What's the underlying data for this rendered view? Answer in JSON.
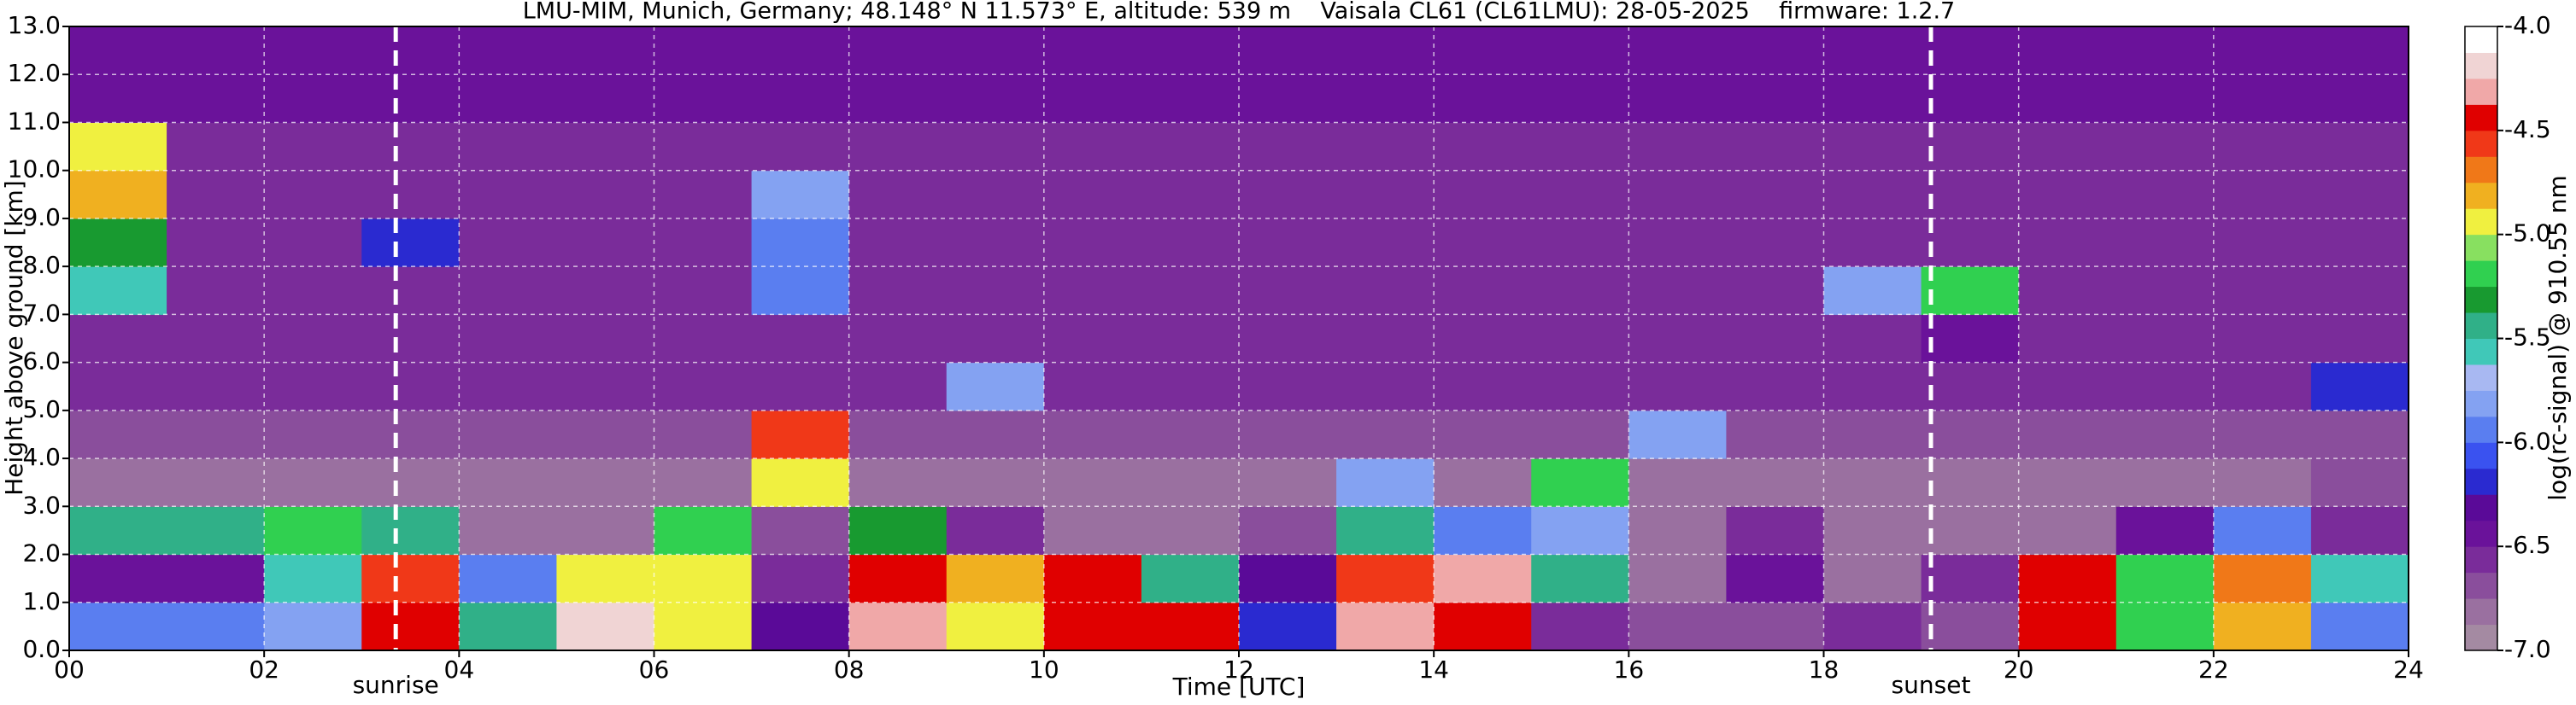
{
  "chart_data": {
    "type": "heatmap",
    "title": "LMU-MIM, Munich, Germany; 48.148° N 11.573° E, altitude: 539 m    Vaisala CL61 (CL61LMU): 28-05-2025    firmware: 1.2.7",
    "x_label": "Time [UTC]",
    "y_label": "Height above ground [km]",
    "colorbar_label": "log(rc-signal) @ 910.55 nm",
    "xlim": [
      0,
      24
    ],
    "xticks": [
      {
        "value": 0,
        "label": "00"
      },
      {
        "value": 2,
        "label": "02"
      },
      {
        "value": 4,
        "label": "04"
      },
      {
        "value": 6,
        "label": "06"
      },
      {
        "value": 8,
        "label": "08"
      },
      {
        "value": 10,
        "label": "10"
      },
      {
        "value": 12,
        "label": "12"
      },
      {
        "value": 14,
        "label": "14"
      },
      {
        "value": 16,
        "label": "16"
      },
      {
        "value": 18,
        "label": "18"
      },
      {
        "value": 20,
        "label": "20"
      },
      {
        "value": 22,
        "label": "22"
      },
      {
        "value": 24,
        "label": "24"
      }
    ],
    "ylim": [
      0,
      13
    ],
    "yticks": [
      {
        "value": 0,
        "label": "0.0"
      },
      {
        "value": 1,
        "label": "1.0"
      },
      {
        "value": 2,
        "label": "2.0"
      },
      {
        "value": 3,
        "label": "3.0"
      },
      {
        "value": 4,
        "label": "4.0"
      },
      {
        "value": 5,
        "label": "5.0"
      },
      {
        "value": 6,
        "label": "6.0"
      },
      {
        "value": 7,
        "label": "7.0"
      },
      {
        "value": 8,
        "label": "8.0"
      },
      {
        "value": 9,
        "label": "9.0"
      },
      {
        "value": 10,
        "label": "10.0"
      },
      {
        "value": 11,
        "label": "11.0"
      },
      {
        "value": 12,
        "label": "12.0"
      },
      {
        "value": 13,
        "label": "13.0"
      }
    ],
    "zlim": [
      -7,
      -4
    ],
    "zticks": [
      {
        "value": -4,
        "label": "-4.0"
      },
      {
        "value": -4.5,
        "label": "-4.5"
      },
      {
        "value": -5,
        "label": "-5.0"
      },
      {
        "value": -5.5,
        "label": "-5.5"
      },
      {
        "value": -6,
        "label": "-6.0"
      },
      {
        "value": -6.5,
        "label": "-6.5"
      },
      {
        "value": -7,
        "label": "-7.0"
      }
    ],
    "colorscale": [
      "#a48aa2",
      "#9a70a0",
      "#8a4e9c",
      "#7a2c9a",
      "#6a129a",
      "#5a0a98",
      "#2a2ad0",
      "#3a52f0",
      "#5a7ef0",
      "#84a2f2",
      "#a8b8f2",
      "#40c8b8",
      "#30b088",
      "#189a30",
      "#30d050",
      "#88e060",
      "#f0f040",
      "#f0b020",
      "#f07818",
      "#f03818",
      "#e00000",
      "#f0a8a8",
      "#f0d4d4",
      "#ffffff"
    ],
    "grid": true,
    "x_edges": [
      0,
      1,
      2,
      3,
      4,
      5,
      6,
      7,
      8,
      9,
      10,
      11,
      12,
      13,
      14,
      15,
      16,
      17,
      18,
      19,
      20,
      21,
      22,
      23,
      24
    ],
    "y_edges": [
      0,
      1,
      2,
      3,
      4,
      5,
      6,
      7,
      8,
      9,
      10,
      11,
      12,
      13
    ],
    "z": [
      [
        -6.0,
        -6.0,
        -5.8,
        -4.5,
        -5.5,
        -4.2,
        -5.0,
        -6.3,
        -4.3,
        -5.0,
        -4.4,
        -4.4,
        -6.2,
        -4.3,
        -4.5,
        -6.6,
        -6.7,
        -6.7,
        -6.6,
        -6.7,
        -4.4,
        -5.2,
        -4.8,
        -6.0
      ],
      [
        -6.5,
        -6.5,
        -5.6,
        -4.6,
        -6.0,
        -5.0,
        -5.0,
        -6.6,
        -4.4,
        -4.8,
        -4.5,
        -5.5,
        -6.3,
        -4.6,
        -4.3,
        -5.5,
        -6.8,
        -6.5,
        -6.8,
        -6.6,
        -4.4,
        -5.2,
        -4.7,
        -5.6
      ],
      [
        -5.5,
        -5.5,
        -5.2,
        -5.5,
        -6.8,
        -6.8,
        -5.2,
        -6.7,
        -5.3,
        -6.6,
        -6.8,
        -6.8,
        -6.7,
        -5.5,
        -6.0,
        -5.8,
        -6.8,
        -6.6,
        -6.8,
        -6.8,
        -6.8,
        -6.5,
        -6.0,
        -6.6
      ],
      [
        -6.8,
        -6.8,
        -6.8,
        -6.8,
        -6.8,
        -6.8,
        -6.8,
        -5.0,
        -6.8,
        -6.8,
        -6.8,
        -6.8,
        -6.8,
        -5.8,
        -6.8,
        -5.2,
        -6.8,
        -6.8,
        -6.8,
        -6.8,
        -6.8,
        -6.8,
        -6.8,
        -6.7
      ],
      [
        -6.7,
        -6.7,
        -6.7,
        -6.7,
        -6.7,
        -6.7,
        -6.7,
        -4.6,
        -6.7,
        -6.7,
        -6.7,
        -6.7,
        -6.7,
        -6.7,
        -6.7,
        -6.7,
        -5.8,
        -6.7,
        -6.7,
        -6.7,
        -6.7,
        -6.7,
        -6.7,
        -6.7
      ],
      [
        -6.6,
        -6.6,
        -6.6,
        -6.6,
        -6.6,
        -6.6,
        -6.6,
        -6.6,
        -6.6,
        -5.8,
        -6.6,
        -6.6,
        -6.6,
        -6.6,
        -6.6,
        -6.6,
        -6.6,
        -6.6,
        -6.6,
        -6.6,
        -6.6,
        -6.6,
        -6.6,
        -6.2
      ],
      [
        -6.6,
        -6.6,
        -6.6,
        -6.6,
        -6.6,
        -6.6,
        -6.6,
        -6.6,
        -6.6,
        -6.6,
        -6.6,
        -6.6,
        -6.6,
        -6.6,
        -6.6,
        -6.6,
        -6.6,
        -6.6,
        -6.6,
        -6.4,
        -6.6,
        -6.6,
        -6.6,
        -6.6
      ],
      [
        -5.6,
        -6.6,
        -6.6,
        -6.6,
        -6.6,
        -6.6,
        -6.6,
        -6.0,
        -6.6,
        -6.6,
        -6.6,
        -6.6,
        -6.6,
        -6.6,
        -6.6,
        -6.6,
        -6.6,
        -6.6,
        -5.8,
        -5.2,
        -6.6,
        -6.6,
        -6.6,
        -6.6
      ],
      [
        -5.3,
        -6.6,
        -6.6,
        -6.2,
        -6.6,
        -6.6,
        -6.6,
        -5.9,
        -6.6,
        -6.6,
        -6.6,
        -6.6,
        -6.6,
        -6.6,
        -6.6,
        -6.6,
        -6.6,
        -6.6,
        -6.6,
        -6.6,
        -6.6,
        -6.6,
        -6.6,
        -6.6
      ],
      [
        -4.8,
        -6.6,
        -6.6,
        -6.6,
        -6.6,
        -6.6,
        -6.6,
        -5.8,
        -6.6,
        -6.6,
        -6.6,
        -6.6,
        -6.6,
        -6.6,
        -6.6,
        -6.6,
        -6.6,
        -6.6,
        -6.6,
        -6.6,
        -6.6,
        -6.6,
        -6.6,
        -6.6
      ],
      [
        -5.0,
        -6.6,
        -6.6,
        -6.6,
        -6.6,
        -6.6,
        -6.6,
        -6.6,
        -6.6,
        -6.6,
        -6.6,
        -6.6,
        -6.6,
        -6.6,
        -6.6,
        -6.6,
        -6.6,
        -6.6,
        -6.6,
        -6.6,
        -6.6,
        -6.6,
        -6.6,
        -6.6
      ],
      [
        -6.5,
        -6.5,
        -6.5,
        -6.5,
        -6.5,
        -6.5,
        -6.5,
        -6.5,
        -6.5,
        -6.5,
        -6.5,
        -6.5,
        -6.5,
        -6.5,
        -6.5,
        -6.5,
        -6.5,
        -6.5,
        -6.5,
        -6.5,
        -6.5,
        -6.5,
        -6.5,
        -6.5
      ],
      [
        -6.4,
        -6.4,
        -6.4,
        -6.4,
        -6.4,
        -6.4,
        -6.4,
        -6.4,
        -6.4,
        -6.4,
        -6.4,
        -6.4,
        -6.4,
        -6.4,
        -6.4,
        -6.4,
        -6.4,
        -6.4,
        -6.4,
        -6.4,
        -6.4,
        -6.4,
        -6.4,
        -6.4
      ]
    ],
    "annotations": [
      {
        "text": "sunrise",
        "x": 3.35
      },
      {
        "text": "sunset",
        "x": 19.1
      }
    ]
  }
}
